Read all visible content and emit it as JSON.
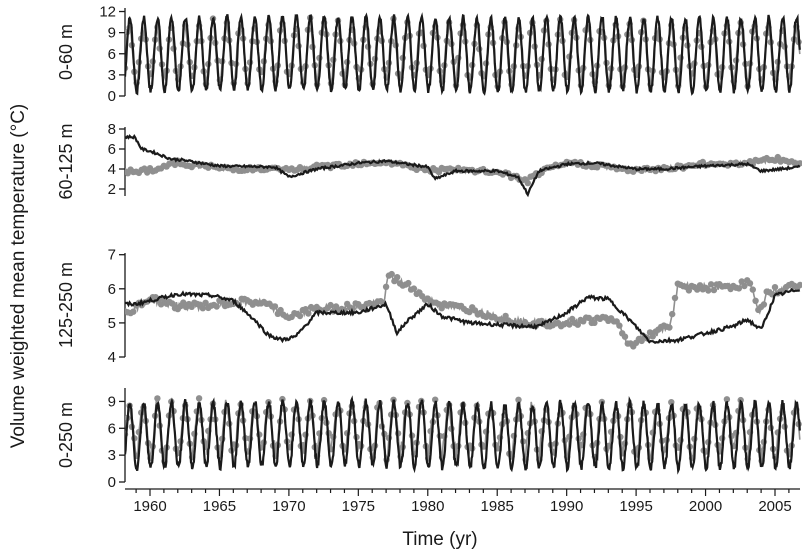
{
  "chart_data": {
    "type": "line",
    "ylabel": "Volume weighted mean temperature (°C)",
    "xlabel": "Time (yr)",
    "x_ticks": [
      "1960",
      "1965",
      "1970",
      "1975",
      "1980",
      "1985",
      "1990",
      "1995",
      "2000",
      "2005"
    ],
    "xlim": [
      1958.2,
      2006.8
    ],
    "colors": {
      "modeled_line": "#1a1a1a",
      "observed_points": "#8f8f8f"
    },
    "panels": [
      {
        "label": "0-60 m",
        "ylim": [
          0,
          12.5
        ],
        "yticks": [
          "0",
          "3",
          "6",
          "9",
          "12"
        ],
        "observed": {
          "type": "scatter-line",
          "mean": 6.0,
          "amplitude": 3.8
        },
        "modeled": {
          "type": "line",
          "mean": 5.8,
          "amplitude": 5.2
        }
      },
      {
        "label": "60-125 m",
        "ylim": [
          1.3,
          8.2
        ],
        "yticks": [
          "2",
          "4",
          "6",
          "8"
        ],
        "modeled_series": {
          "x": [
            1958.9,
            1959.4,
            1960.2,
            1961.5,
            1962.3,
            1965,
            1969,
            1970,
            1972,
            1975,
            1977,
            1980,
            1980.5,
            1982,
            1985,
            1986.5,
            1987.2,
            1988,
            1990,
            1992,
            1995,
            1997,
            2000,
            2003,
            2004,
            2006.8
          ],
          "y": [
            7.2,
            6.0,
            5.7,
            5.0,
            4.9,
            4.3,
            4.2,
            3.2,
            4.0,
            4.6,
            4.8,
            4.2,
            3.0,
            3.8,
            3.8,
            3.2,
            1.5,
            3.8,
            4.5,
            4.6,
            4.0,
            4.0,
            4.3,
            4.5,
            3.8,
            4.2
          ]
        },
        "observed_series": {
          "x": [
            1958.5,
            1960,
            1962,
            1965,
            1970,
            1975,
            1977,
            1980,
            1982,
            1985,
            1987.2,
            1988,
            1990,
            1992,
            1995,
            1998,
            2000,
            2003,
            2005,
            2006.8
          ],
          "y": [
            3.8,
            3.9,
            4.6,
            4.1,
            3.9,
            4.6,
            4.7,
            3.9,
            3.9,
            3.7,
            2.8,
            3.6,
            4.6,
            4.4,
            3.8,
            4.2,
            4.5,
            4.6,
            5.0,
            4.6
          ]
        }
      },
      {
        "label": "125-250 m",
        "ylim": [
          4,
          7.05
        ],
        "yticks": [
          "4",
          "5",
          "6",
          "7"
        ],
        "modeled_series": {
          "x": [
            1958.9,
            1960,
            1962,
            1964.5,
            1966,
            1967.5,
            1968.5,
            1969.5,
            1970.5,
            1972,
            1975,
            1977,
            1977.8,
            1978.5,
            1980,
            1981,
            1983,
            1987,
            1988,
            1990,
            1991.5,
            1993,
            1994.5,
            1996,
            1998,
            2000,
            2002,
            2003,
            2004,
            2005,
            2006.8
          ],
          "y": [
            5.55,
            5.65,
            5.85,
            5.8,
            5.65,
            5.1,
            4.65,
            4.5,
            4.6,
            5.3,
            5.3,
            5.55,
            4.7,
            5.05,
            5.55,
            5.2,
            5.0,
            4.9,
            4.9,
            5.3,
            5.75,
            5.7,
            5.1,
            4.45,
            4.5,
            4.7,
            4.9,
            5.1,
            4.8,
            5.8,
            6.0
          ]
        },
        "observed_series": {
          "x": [
            1958.5,
            1960,
            1962,
            1964,
            1966,
            1968,
            1970,
            1972,
            1975,
            1976.8,
            1977.2,
            1978,
            1979,
            1980,
            1981,
            1983,
            1985,
            1987,
            1990,
            1992,
            1993.5,
            1994.5,
            1995.5,
            1996.5,
            1997.5,
            1998,
            1999,
            2001,
            2002.5,
            2003.2,
            2003.8,
            2004.5,
            2006.8
          ],
          "y": [
            5.3,
            5.7,
            5.5,
            5.5,
            5.6,
            5.6,
            5.2,
            5.4,
            5.5,
            5.6,
            6.4,
            6.2,
            6.0,
            5.7,
            5.5,
            5.4,
            5.2,
            5.0,
            5.0,
            5.1,
            5.1,
            4.3,
            4.6,
            4.7,
            5.0,
            6.1,
            6.05,
            6.05,
            6.1,
            6.2,
            5.3,
            5.9,
            6.1
          ]
        }
      },
      {
        "label": "0-250 m",
        "ylim": [
          0,
          10.5
        ],
        "yticks": [
          "0",
          "3",
          "6",
          "9"
        ],
        "observed": {
          "type": "scatter-line",
          "mean": 5.7,
          "amplitude": 2.6
        },
        "modeled": {
          "type": "line",
          "mean": 5.1,
          "amplitude": 3.6
        }
      }
    ]
  }
}
